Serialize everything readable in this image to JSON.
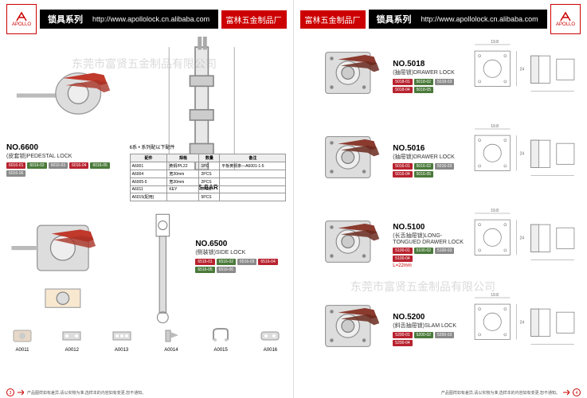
{
  "brand": {
    "logo_text": "APOLLO",
    "company": "富林五金制品厂"
  },
  "header": {
    "series_label": "锁具系列",
    "url": "http://www.apollolock.cn.alibaba.com"
  },
  "watermark_text": "东莞市富贤五金制品有限公司",
  "colors": {
    "accent_red": "#c00000",
    "black": "#000000",
    "chip_red": "#b8232f",
    "chip_green": "#4a7a3a",
    "chip_grey": "#8a8a8a"
  },
  "left_page": {
    "page_num": "3",
    "footer_note": "产品图样如有差异,请以实物为准,选样本的内容如有变更,恕不通知。",
    "products": [
      {
        "no": "NO.6600",
        "type": "(皮套锁)PEDESTAL LOCK",
        "chips": [
          "6016-01",
          "6016-02",
          "6016-03",
          "6016-04",
          "6016-05",
          "6016-06"
        ]
      },
      {
        "no": "NO.6500",
        "type": "(侧装锁)SIDE LOCK",
        "chips": [
          "6516-01",
          "6516-02",
          "6516-03",
          "6516-04",
          "6516-05",
          "6516-06"
        ]
      }
    ],
    "sbar_label": "S-BAR",
    "spec_table": {
      "title": "6系 • 系列配以下配件",
      "headers": [
        "配件",
        "规格",
        "数量",
        "备注"
      ],
      "rows": [
        [
          "A6001",
          "黄铜/PL22",
          "1PC",
          "平板黄铜条—A6001-1-5"
        ],
        [
          "A6004",
          "宽30mm",
          "2PCS",
          ""
        ],
        [
          "A6005-5",
          "宽30mm",
          "2PCS",
          ""
        ],
        [
          "A6011",
          "KEY",
          "2PCS",
          ""
        ],
        [
          "A6015(配用)",
          "",
          "5PCS",
          ""
        ]
      ]
    },
    "accessories": [
      {
        "code": "A0011"
      },
      {
        "code": "A0012"
      },
      {
        "code": "A0013"
      },
      {
        "code": "A0014"
      },
      {
        "code": "A0015"
      },
      {
        "code": "A0016"
      }
    ]
  },
  "right_page": {
    "page_num": "4",
    "footer_note": "产品图样如有差异,请以实物为准,选样本的内容如有变更,恕不通知。",
    "products": [
      {
        "no": "NO.5018",
        "type": "(抽屉锁)DRAWER LOCK",
        "chips": [
          "5018-01",
          "5018-02",
          "5018-03",
          "5018-04",
          "5018-05"
        ]
      },
      {
        "no": "NO.5016",
        "type": "(抽屉锁)DRAWER LOCK",
        "chips": [
          "5016-01",
          "5016-02",
          "5016-03",
          "5016-04",
          "5016-05"
        ]
      },
      {
        "no": "NO.5100",
        "type": "(长舌抽屉锁)LONG-TONGUED DRAWER LOCK",
        "chips": [
          "5100-01",
          "5100-02",
          "5100-03",
          "5100-04"
        ],
        "extra": "L=22mm"
      },
      {
        "no": "NO.5200",
        "type": "(斜舌抽屉锁)SLAM LOCK",
        "chips": [
          "5200-01",
          "5200-02",
          "5200-03",
          "5200-04"
        ]
      }
    ]
  }
}
